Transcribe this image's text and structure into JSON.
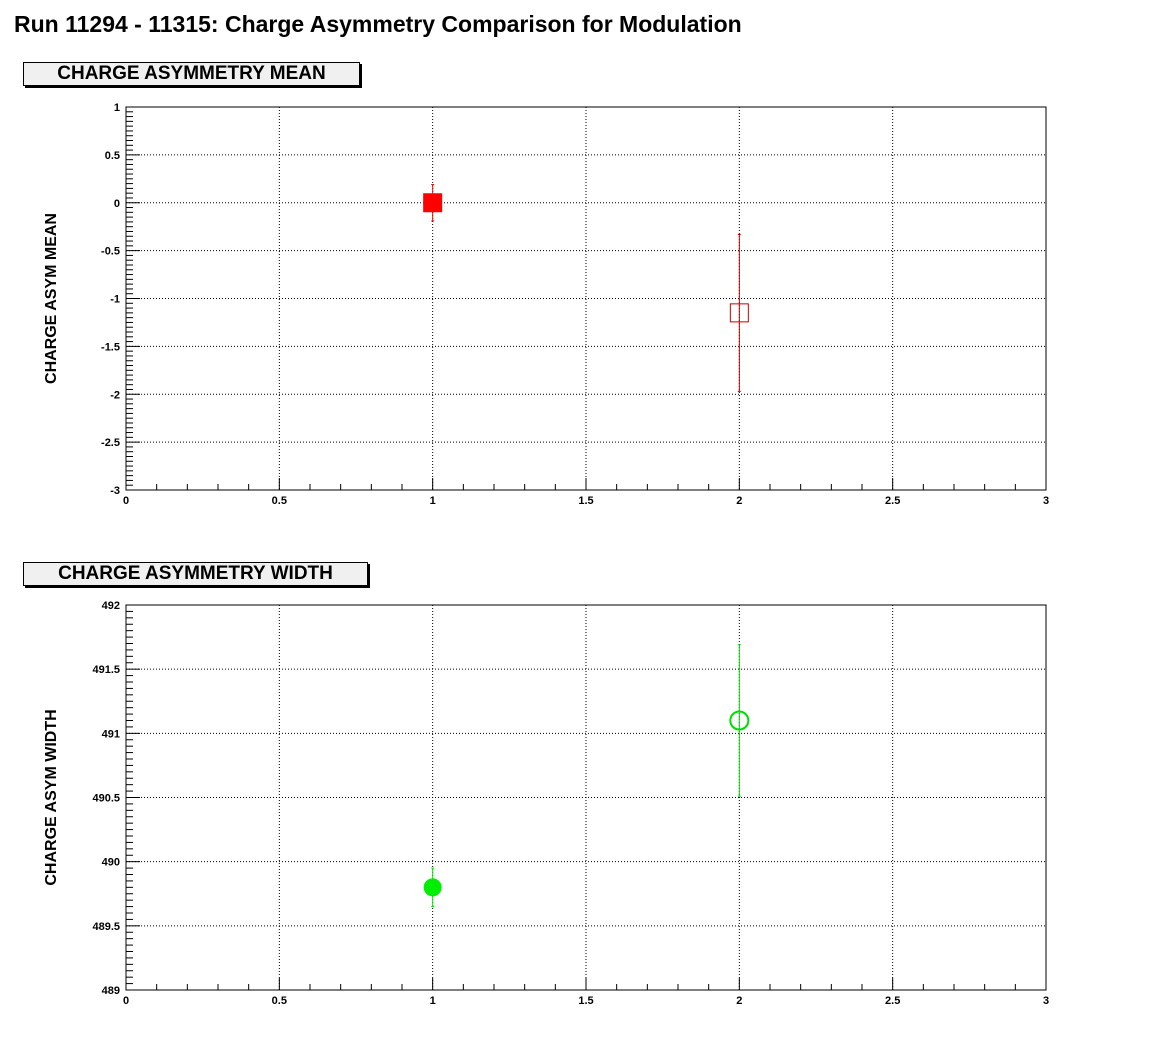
{
  "title": "Run 11294 - 11315: Charge Asymmetry Comparison for Modulation",
  "chart_data": [
    {
      "type": "scatter",
      "panel_title": "CHARGE ASYMMETRY MEAN",
      "xlabel": "",
      "ylabel": "CHARGE ASYM MEAN",
      "xlim": [
        0,
        3
      ],
      "ylim": [
        -3,
        1
      ],
      "xticks": [
        0,
        0.5,
        1,
        1.5,
        2,
        2.5,
        3
      ],
      "xtick_labels": [
        "0",
        "0.5",
        "1",
        "1.5",
        "2",
        "2.5",
        "3"
      ],
      "yticks": [
        1,
        0.5,
        0,
        -0.5,
        -1,
        -1.5,
        -2,
        -2.5,
        -3
      ],
      "ytick_labels": [
        "1",
        "0.5",
        "0",
        "-0.5",
        "-1",
        "-1.5",
        "-2",
        "-2.5",
        "-3"
      ],
      "grid": true,
      "series": [
        {
          "x": [
            1
          ],
          "y": [
            0.0
          ],
          "err": [
            0.19
          ],
          "color": "#ff0000",
          "marker": "filled-square"
        },
        {
          "x": [
            2
          ],
          "y": [
            -1.15
          ],
          "err": [
            0.82
          ],
          "color": "#cc0000",
          "marker": "open-square"
        }
      ]
    },
    {
      "type": "scatter",
      "panel_title": "CHARGE ASYMMETRY WIDTH",
      "xlabel": "",
      "ylabel": "CHARGE ASYM WIDTH",
      "xlim": [
        0,
        3
      ],
      "ylim": [
        489,
        492
      ],
      "xticks": [
        0,
        0.5,
        1,
        1.5,
        2,
        2.5,
        3
      ],
      "xtick_labels": [
        "0",
        "0.5",
        "1",
        "1.5",
        "2",
        "2.5",
        "3"
      ],
      "yticks": [
        492,
        491.5,
        491,
        490.5,
        490,
        489.5,
        489
      ],
      "ytick_labels": [
        "492",
        "491.5",
        "491",
        "490.5",
        "490",
        "489.5",
        "489"
      ],
      "grid": true,
      "series": [
        {
          "x": [
            1
          ],
          "y": [
            489.8
          ],
          "err": [
            0.15
          ],
          "color": "#00ee00",
          "marker": "filled-circle"
        },
        {
          "x": [
            2
          ],
          "y": [
            491.1
          ],
          "err": [
            0.59
          ],
          "color": "#00dd00",
          "marker": "open-circle"
        }
      ]
    }
  ]
}
